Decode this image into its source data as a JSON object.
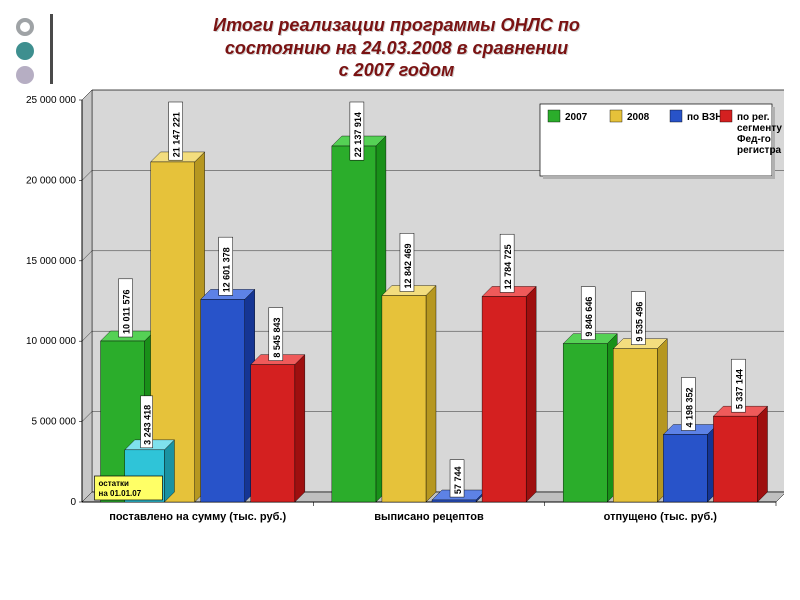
{
  "title": {
    "line1": "Итоги реализации программы ОНЛС по",
    "line2": "состоянию на 24.03.2008 в сравнении",
    "line3": "с 2007 годом"
  },
  "chart": {
    "type": "bar",
    "background_color": "#ffffff",
    "plot_border_color": "#000000",
    "grid_color": "#000000",
    "grid_width": 0.4,
    "tick_fontsize": 10,
    "cat_fontsize": 11,
    "bar_label_fontsize": 9,
    "ylim": [
      0,
      25000000
    ],
    "ytick_step": 5000000,
    "yticks": [
      "0",
      "5 000 000",
      "10 000 000",
      "15 000 000",
      "20 000 000",
      "25 000 000"
    ],
    "legend": {
      "items": [
        {
          "label": "2007",
          "color": "#2bad2b"
        },
        {
          "label": "2008",
          "color": "#e6c23a"
        },
        {
          "label": "по ВЗН",
          "color": "#2853c9"
        },
        {
          "label": "по рег. сегменту Фед-го регистра",
          "color": "#d42020"
        }
      ],
      "border_color": "#000000",
      "bg_color": "#ffffff",
      "fontsize": 10
    },
    "categories": [
      "поставлено на сумму (тыс. руб.)",
      "выписано рецептов",
      "отпущено (тыс. руб.)"
    ],
    "data": [
      [
        10011576,
        21147221,
        12601378,
        8545843
      ],
      [
        22137914,
        12842469,
        57744,
        12784725
      ],
      [
        9846646,
        9535496,
        4198352,
        5337144
      ]
    ],
    "labels": [
      [
        "10 011 576",
        "21 147 221",
        "12 601 378",
        "8 545 843"
      ],
      [
        "22 137 914",
        "12 842 469",
        "57 744",
        "12 784 725"
      ],
      [
        "9 846 646",
        "9 535 496",
        "4 198 352",
        "5 337 144"
      ]
    ],
    "bar_colors_3d": {
      "green": {
        "front": "#2bad2b",
        "top": "#55d155",
        "side": "#199019"
      },
      "yellow": {
        "front": "#e6c23a",
        "top": "#f3dd7e",
        "side": "#b69720"
      },
      "blue": {
        "front": "#2853c9",
        "top": "#5d82e6",
        "side": "#153594"
      },
      "red": {
        "front": "#d42020",
        "top": "#ef5a5a",
        "side": "#9e0f0f"
      },
      "cyan": {
        "front": "#2fc4d8",
        "top": "#7fe1ed",
        "side": "#1a92a2"
      }
    },
    "bar_depth": 10,
    "extra_annotation": {
      "label": "остатки на 01.01.07",
      "value_label": "3 243 418",
      "value": 3243418,
      "box_bg": "#ffff66",
      "box_border": "#000000",
      "box_fontsize": 8
    },
    "bar_label_box": {
      "bg": "#ffffff",
      "border": "#000000"
    },
    "color_order": [
      "green",
      "yellow",
      "blue",
      "red"
    ]
  }
}
